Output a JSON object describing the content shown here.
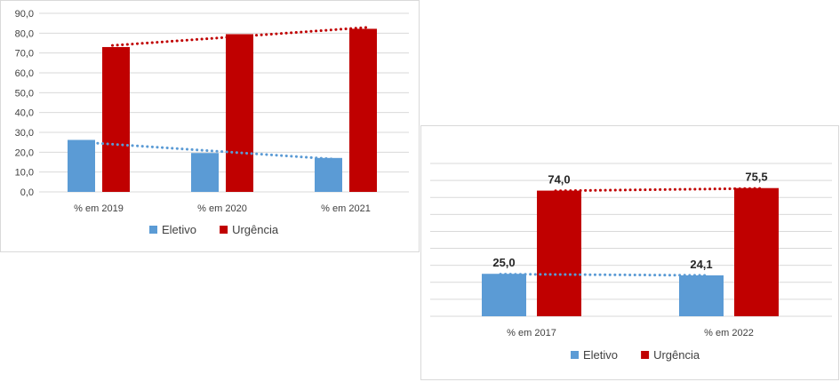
{
  "colors": {
    "eletivo": "#5b9bd5",
    "urgencia": "#c00000",
    "trend_eletivo": "#5b9bd5",
    "trend_urgencia": "#c00000",
    "grid": "#d9d9d9"
  },
  "chart_data": [
    {
      "type": "bar",
      "categories": [
        "% em 2019",
        "% em 2020",
        "% em  2021"
      ],
      "series": [
        {
          "name": "Eletivo",
          "values": [
            26.2,
            19.6,
            17.1
          ]
        },
        {
          "name": "Urgência",
          "values": [
            73.0,
            79.5,
            82.2
          ]
        }
      ],
      "trendlines": [
        {
          "series": "Eletivo",
          "start": 25.2,
          "end": 16.6
        },
        {
          "series": "Urgência",
          "start": 73.8,
          "end": 82.9
        }
      ],
      "ylim": [
        0,
        90
      ],
      "y_ticks": [
        "0,0",
        "10,0",
        "20,0",
        "30,0",
        "40,0",
        "50,0",
        "60,0",
        "70,0",
        "80,0",
        "90,0"
      ],
      "y_tick_values": [
        0,
        10,
        20,
        30,
        40,
        50,
        60,
        70,
        80,
        90
      ],
      "data_labels": [],
      "grid": true,
      "legend": "bottom",
      "legend_labels": [
        "Eletivo",
        "Urgência"
      ]
    },
    {
      "type": "bar",
      "categories": [
        "% em 2017",
        "% em 2022"
      ],
      "series": [
        {
          "name": "Eletivo",
          "values": [
            25.0,
            24.1
          ]
        },
        {
          "name": "Urgência",
          "values": [
            74.0,
            75.5
          ]
        }
      ],
      "trendlines": [
        {
          "series": "Eletivo",
          "start": 24.8,
          "end": 24.1
        },
        {
          "series": "Urgência",
          "start": 73.9,
          "end": 75.3
        }
      ],
      "ylim": [
        0,
        90
      ],
      "y_ticks": [],
      "y_tick_values": [
        0,
        10,
        20,
        30,
        40,
        50,
        60,
        70,
        80,
        90
      ],
      "data_labels": [
        [
          "25,0",
          "24,1"
        ],
        [
          "74,0",
          "75,5"
        ]
      ],
      "grid": true,
      "legend": "bottom",
      "legend_labels": [
        "Eletivo",
        "Urgência"
      ]
    }
  ]
}
